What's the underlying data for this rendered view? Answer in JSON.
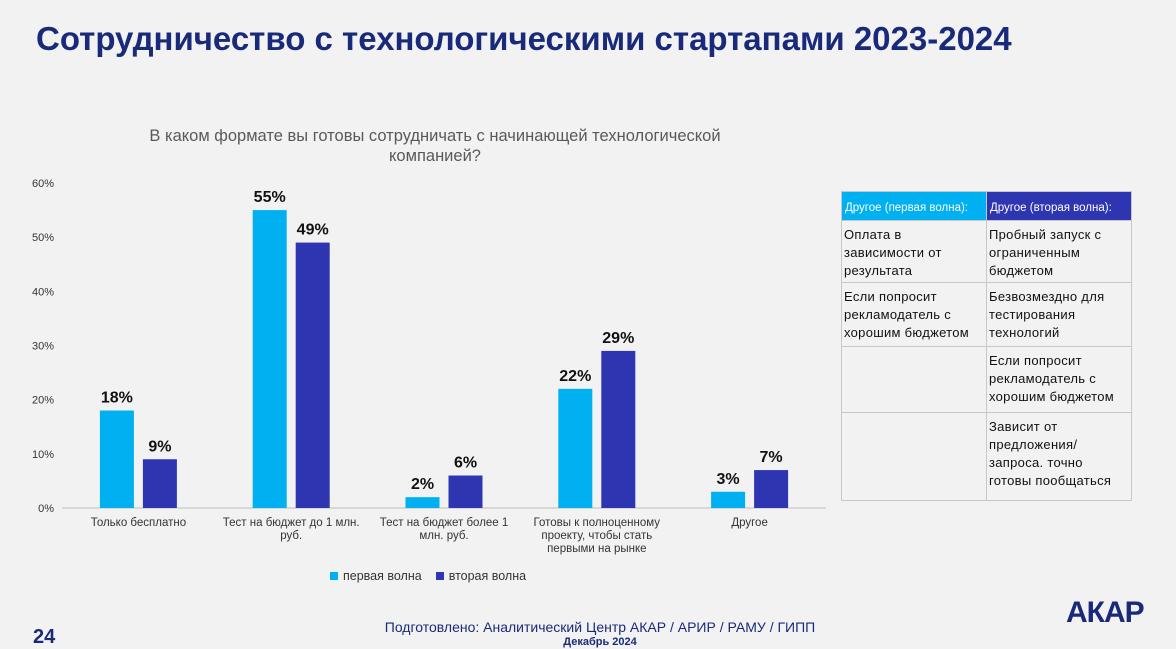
{
  "page": {
    "title": "Сотрудничество с технологическими стартапами 2023-2024",
    "page_number": "24",
    "footer_line": "Подготовлено: Аналитический Центр АКАР / АРИР / РАМУ / ГИПП",
    "footer_date": "Декабрь 2024",
    "logo": "АКАР"
  },
  "chart_data": {
    "type": "bar",
    "title": "В каком формате вы готовы сотрудничать с начинающей технологической компанией?",
    "categories": [
      [
        "Только бесплатно"
      ],
      [
        "Тест на бюджет до 1 млн.",
        "руб."
      ],
      [
        "Тест на бюджет более 1",
        "млн. руб."
      ],
      [
        "Готовы к полноценному",
        "проекту, чтобы стать",
        "первыми на рынке"
      ],
      [
        "Другое"
      ]
    ],
    "series": [
      {
        "name": "первая волна",
        "color": "#00b0f0",
        "values": [
          18,
          55,
          2,
          22,
          3
        ],
        "labels": [
          "18%",
          "55%",
          "2%",
          "22%",
          "3%"
        ]
      },
      {
        "name": "вторая волна",
        "color": "#2e35b0",
        "values": [
          9,
          49,
          6,
          29,
          7
        ],
        "labels": [
          "9%",
          "49%",
          "6%",
          "29%",
          "7%"
        ]
      }
    ],
    "ylim": [
      0,
      60
    ],
    "yticks": [
      0,
      10,
      20,
      30,
      40,
      50,
      60
    ],
    "ytick_labels": [
      "0%",
      "10%",
      "20%",
      "30%",
      "40%",
      "50%",
      "60%"
    ],
    "xlabel": "",
    "ylabel": "",
    "grid": false,
    "legend_position": "bottom"
  },
  "other_table": {
    "headers": [
      "Другое (первая волна):",
      "Другое (вторая волна):"
    ],
    "rows": [
      [
        "Оплата в зависимости от результата",
        "Пробный запуск с ограниченным бюджетом"
      ],
      [
        "Если попросит рекламодатель с хорошим бюджетом",
        "Безвозмездно для тестирования технологий"
      ],
      [
        "",
        "Если попросит рекламодатель с хорошим бюджетом"
      ],
      [
        "",
        "Зависит от предложения/запроса. точно готовы пообщаться"
      ]
    ]
  }
}
